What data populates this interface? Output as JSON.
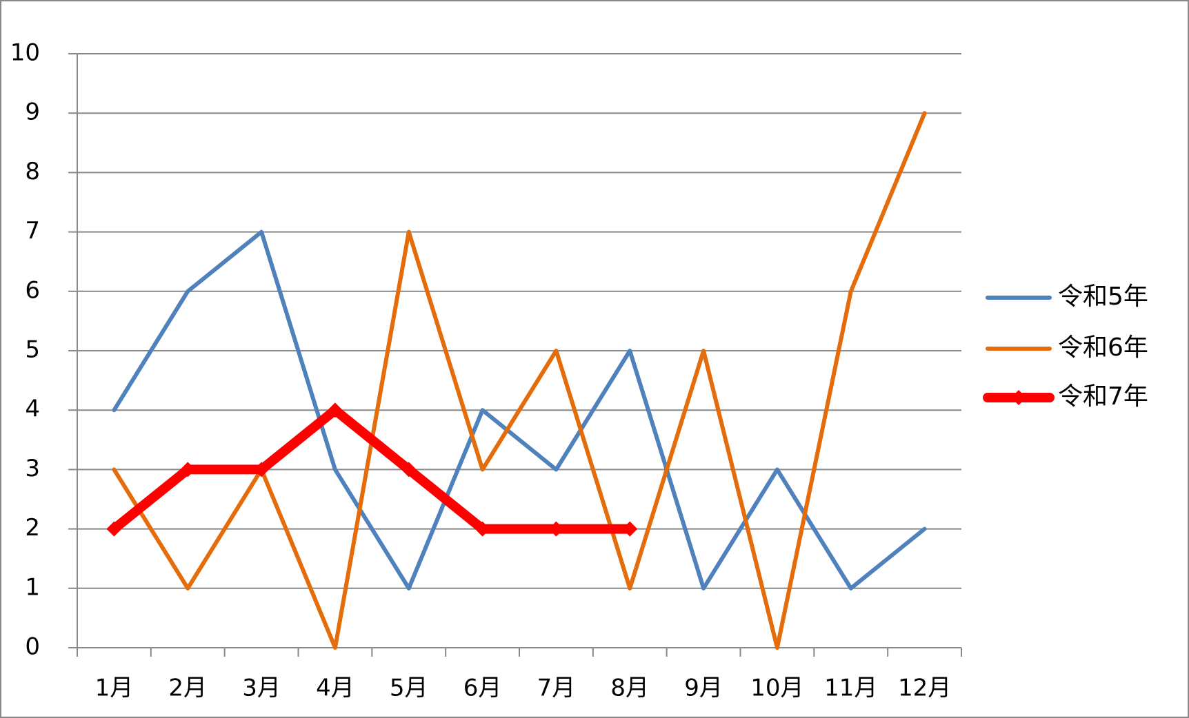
{
  "chart_data": {
    "type": "line",
    "categories": [
      "1月",
      "2月",
      "3月",
      "4月",
      "5月",
      "6月",
      "7月",
      "8月",
      "9月",
      "10月",
      "11月",
      "12月"
    ],
    "series": [
      {
        "name": "令和5年",
        "color": "#4f81bd",
        "values": [
          4,
          6,
          7,
          3,
          1,
          4,
          3,
          5,
          1,
          3,
          1,
          2
        ]
      },
      {
        "name": "令和6年",
        "color": "#e46c0a",
        "values": [
          3,
          1,
          3,
          0,
          7,
          3,
          5,
          1,
          5,
          0,
          6,
          9
        ]
      },
      {
        "name": "令和7年",
        "color": "#ff0000",
        "values": [
          2,
          3,
          3,
          4,
          3,
          2,
          2,
          2,
          null,
          null,
          null,
          null
        ]
      }
    ],
    "ylim": [
      0,
      10
    ],
    "yticks": [
      0,
      1,
      2,
      3,
      4,
      5,
      6,
      7,
      8,
      9,
      10
    ],
    "grid": true,
    "legend": "right"
  }
}
